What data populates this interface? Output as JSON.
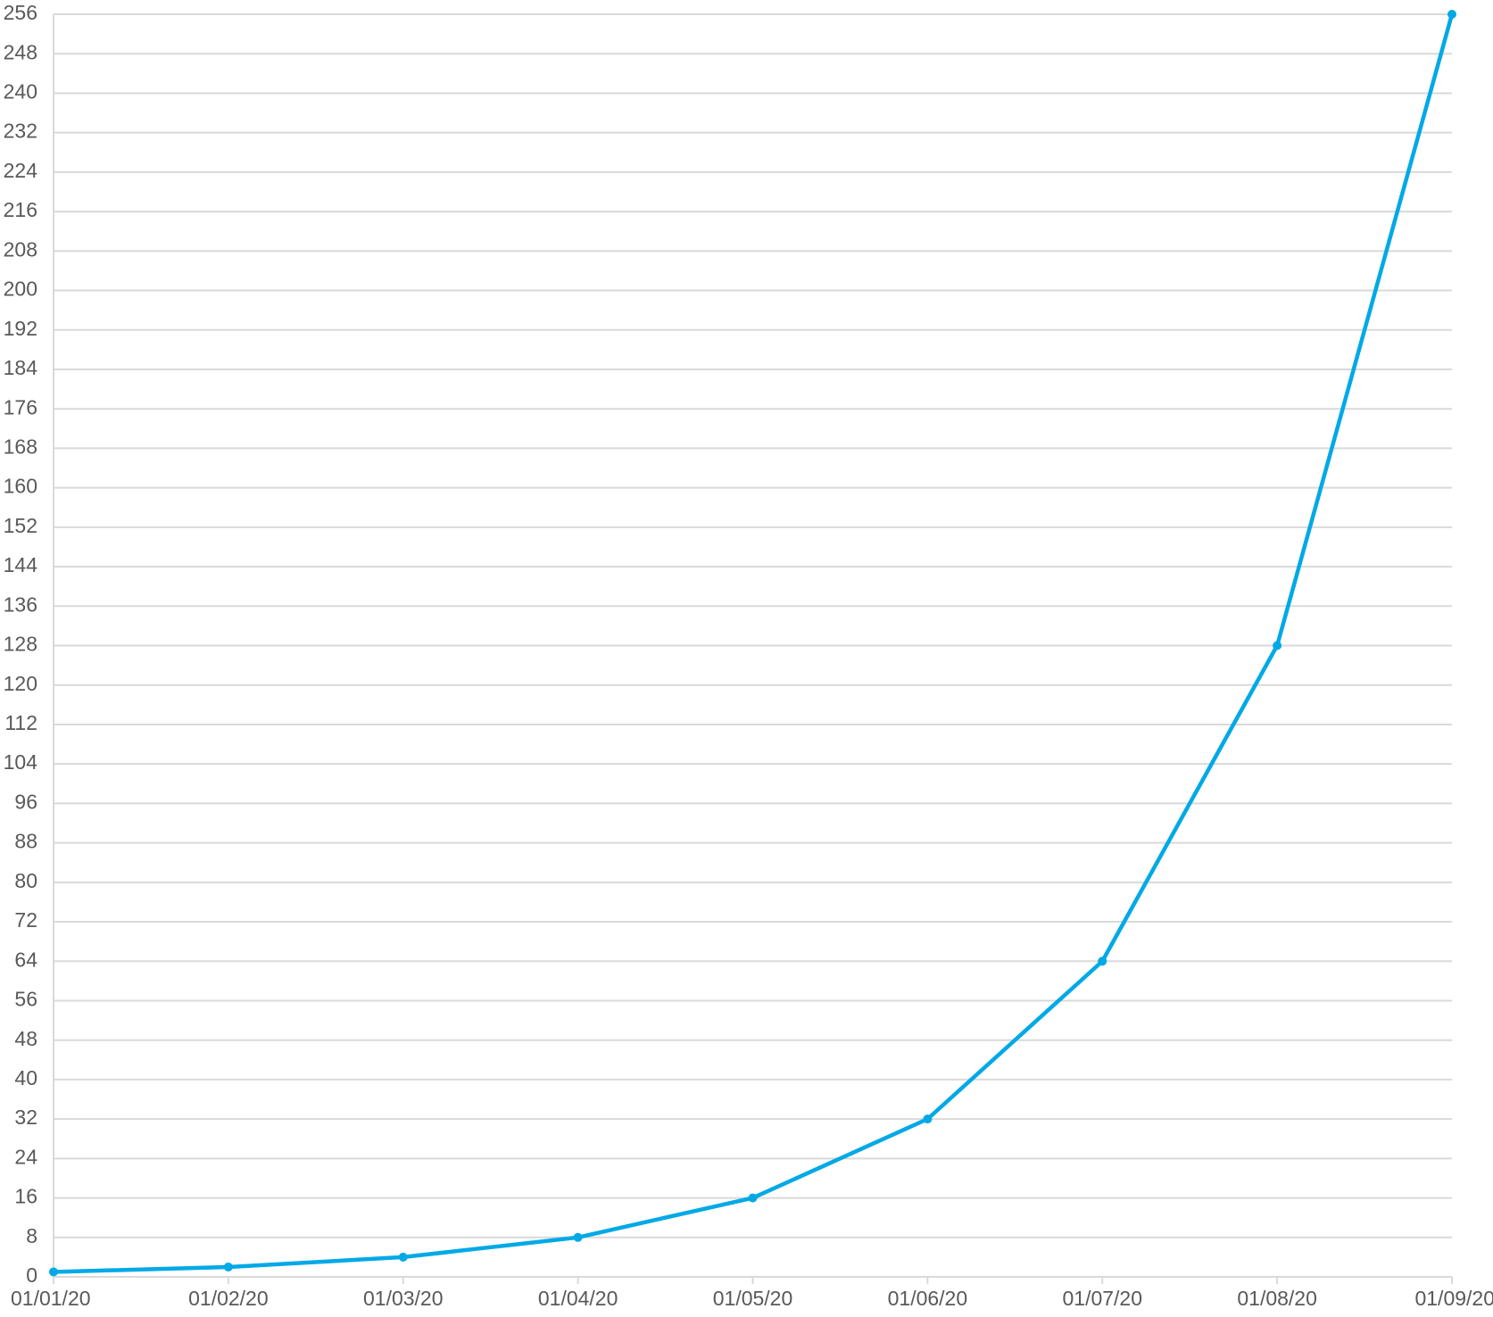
{
  "chart_data": {
    "type": "line",
    "title": "",
    "xlabel": "",
    "ylabel": "",
    "categories": [
      "01/01/20",
      "01/02/20",
      "01/03/20",
      "01/04/20",
      "01/05/20",
      "01/06/20",
      "01/07/20",
      "01/08/20",
      "01/09/20"
    ],
    "series": [
      {
        "values": [
          1,
          2,
          4,
          8,
          16,
          32,
          64,
          128,
          256
        ],
        "color": "#00a9e6"
      }
    ],
    "ylim": [
      0,
      256
    ],
    "y_ticks": [
      0,
      8,
      16,
      24,
      32,
      40,
      48,
      56,
      64,
      72,
      80,
      88,
      96,
      104,
      112,
      120,
      128,
      136,
      144,
      152,
      160,
      168,
      176,
      184,
      192,
      200,
      208,
      216,
      224,
      232,
      240,
      248,
      256
    ],
    "grid": true,
    "legend": "none",
    "colors": {
      "gridline": "#d9d9d9",
      "tick_label": "#595959",
      "series": "#00a9e6"
    }
  }
}
